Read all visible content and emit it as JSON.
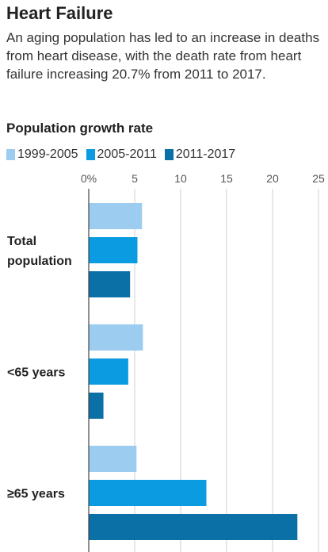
{
  "header": {
    "title": "Heart Failure",
    "subtitle": "An aging population has led to an increase in deaths from heart disease, with the death rate from heart failure increasing 20.7% from 2011 to 2017."
  },
  "chart_data": {
    "type": "bar",
    "orientation": "horizontal",
    "title": "Population growth rate",
    "xlabel": "",
    "ylabel": "",
    "xlim": [
      0,
      25
    ],
    "ticks": [
      0,
      5,
      10,
      15,
      20,
      25
    ],
    "tick_labels": [
      "0%",
      "5",
      "10",
      "15",
      "20",
      "25"
    ],
    "grid": true,
    "legend_position": "top-left",
    "categories": [
      {
        "lines": [
          "Total",
          "population"
        ]
      },
      {
        "lines": [
          "<65 years"
        ]
      },
      {
        "lines": [
          "≥65 years"
        ]
      }
    ],
    "series": [
      {
        "name": "1999-2005",
        "color": "#9ccdf0",
        "values": [
          5.8,
          5.9,
          5.2
        ]
      },
      {
        "name": "2005-2011",
        "color": "#0a9be0",
        "values": [
          5.3,
          4.3,
          12.8
        ]
      },
      {
        "name": "2011-2017",
        "color": "#0b70a6",
        "values": [
          4.5,
          1.6,
          22.7
        ]
      }
    ]
  }
}
